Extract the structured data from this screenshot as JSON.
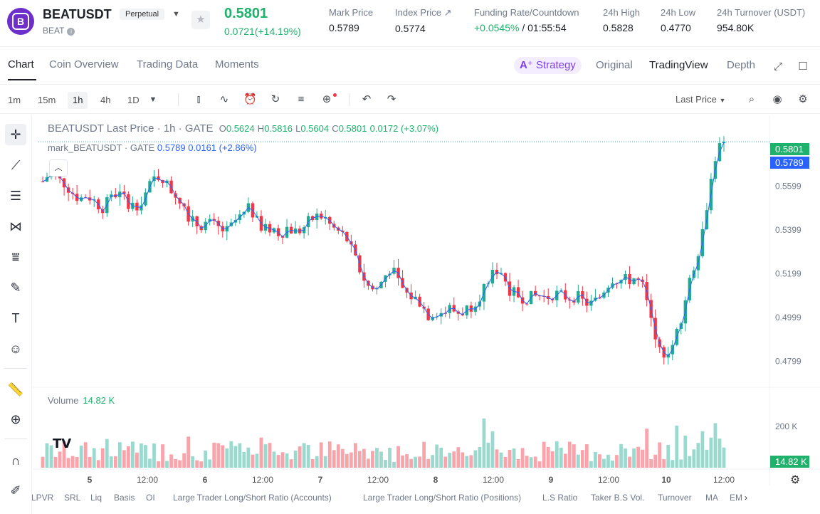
{
  "header": {
    "symbol": "BEATUSDT",
    "contract_type": "Perpetual",
    "base": "BEAT",
    "last_price": "0.5801",
    "change": "0.0721(+14.19%)",
    "stats": [
      {
        "label": "Mark Price",
        "value": "0.5789"
      },
      {
        "label": "Index Price ↗",
        "value": "0.5774"
      },
      {
        "label": "Funding Rate/Countdown",
        "value_green": "+0.0545%",
        "value": " / 01:55:54"
      },
      {
        "label": "24h High",
        "value": "0.5828"
      },
      {
        "label": "24h Low",
        "value": "0.4770"
      },
      {
        "label": "24h Turnover (USDT)",
        "value": "954.80K"
      }
    ]
  },
  "tabs": [
    "Chart",
    "Coin Overview",
    "Trading Data",
    "Moments"
  ],
  "view_tabs": {
    "strategy": "Strategy",
    "original": "Original",
    "tradingview": "TradingView",
    "depth": "Depth"
  },
  "timeframes": [
    "1m",
    "15m",
    "1h",
    "4h",
    "1D"
  ],
  "active_timeframe": "1h",
  "price_source": "Last Price",
  "legend": {
    "title": "BEATUSDT Last Price · 1h · GATE",
    "o": "0.5624",
    "h": "0.5816",
    "l": "0.5604",
    "c": "0.5801",
    "change": "0.0172 (+3.07%)",
    "mark_title": "mark_BEATUSDT · GATE",
    "mark_value": "0.5789",
    "mark_change": "0.0161 (+2.86%)"
  },
  "volume": {
    "label": "Volume",
    "value": "14.82 K",
    "axis_label": "200 K"
  },
  "price_tags": {
    "last": "0.5801",
    "mark": "0.5789",
    "volume": "14.82 K"
  },
  "colors": {
    "up": "#22ab94",
    "down": "#f23645",
    "mark_line": "#2962ff",
    "last_tag": "#20b26c",
    "mark_tag": "#2962ff"
  },
  "chart_data": {
    "type": "candlestick",
    "title": "BEATUSDT Last Price · 1h · GATE",
    "y_ticks": [
      "0.5599",
      "0.5399",
      "0.5199",
      "0.4999",
      "0.4799"
    ],
    "y_tick_values": [
      0.5599,
      0.5399,
      0.5199,
      0.4999,
      0.4799
    ],
    "x_ticks": [
      "5",
      "12:00",
      "6",
      "12:00",
      "7",
      "12:00",
      "8",
      "12:00",
      "9",
      "12:00",
      "10",
      "12:00"
    ],
    "close_path": [
      0.562,
      0.566,
      0.563,
      0.561,
      0.557,
      0.554,
      0.556,
      0.553,
      0.55,
      0.553,
      0.557,
      0.554,
      0.551,
      0.552,
      0.557,
      0.563,
      0.565,
      0.559,
      0.556,
      0.552,
      0.544,
      0.542,
      0.543,
      0.542,
      0.54,
      0.539,
      0.544,
      0.546,
      0.55,
      0.543,
      0.54,
      0.541,
      0.538,
      0.541,
      0.539,
      0.54,
      0.544,
      0.546,
      0.546,
      0.541,
      0.539,
      0.536,
      0.528,
      0.52,
      0.514,
      0.512,
      0.518,
      0.523,
      0.516,
      0.511,
      0.509,
      0.507,
      0.501,
      0.503,
      0.502,
      0.504,
      0.502,
      0.503,
      0.506,
      0.51,
      0.516,
      0.522,
      0.521,
      0.513,
      0.51,
      0.509,
      0.509,
      0.51,
      0.509,
      0.511,
      0.51,
      0.509,
      0.51,
      0.507,
      0.506,
      0.508,
      0.514,
      0.518,
      0.517,
      0.517,
      0.518,
      0.514,
      0.501,
      0.485,
      0.484,
      0.487,
      0.497,
      0.512,
      0.524,
      0.537,
      0.558,
      0.576,
      0.58
    ],
    "last_price": 0.5801,
    "mark_price": 0.5789
  },
  "indicators": [
    "LPVR",
    "SRL",
    "Liq",
    "Basis",
    "OI",
    "Large Trader Long/Short Ratio (Accounts)",
    "Large Trader Long/Short Ratio (Positions)",
    "L.S Ratio",
    "Taker B.S Vol.",
    "Turnover",
    "MA",
    "EM"
  ]
}
